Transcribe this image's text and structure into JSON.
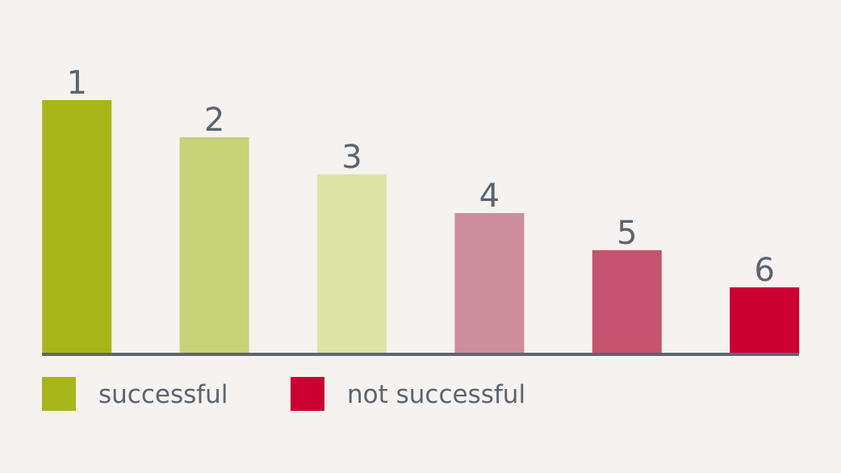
{
  "chart_data": {
    "type": "bar",
    "categories": [
      "1",
      "2",
      "3",
      "4",
      "5",
      "6"
    ],
    "values": [
      314,
      268,
      222,
      174,
      128,
      82
    ],
    "colors": [
      "#a8b51a",
      "#c8d276",
      "#dde3a6",
      "#cc8e9d",
      "#c5536f",
      "#cc0033"
    ],
    "ylim": [
      0,
      340
    ],
    "legend": [
      {
        "name": "successful",
        "color": "#a8b51a"
      },
      {
        "name": "not successful",
        "color": "#cc0033"
      }
    ]
  }
}
